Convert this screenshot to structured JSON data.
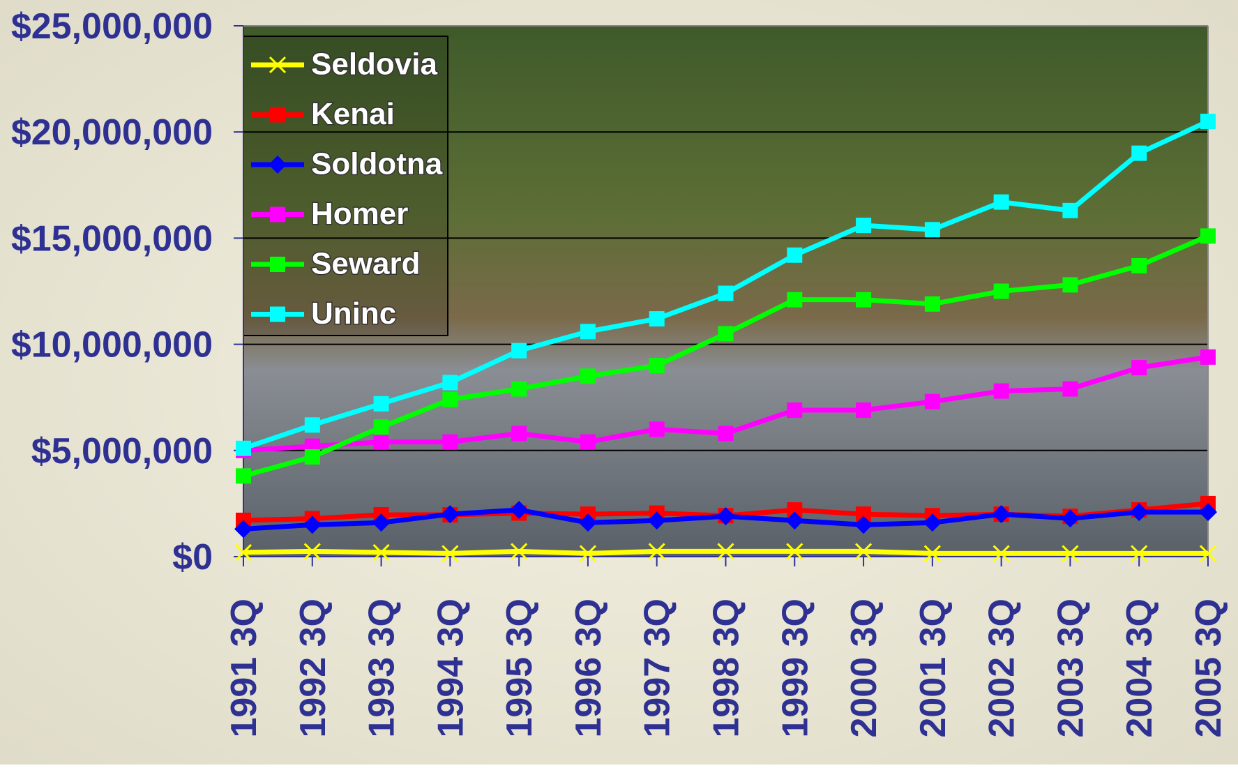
{
  "chart_data": {
    "type": "line",
    "categories": [
      "1991 3Q",
      "1992 3Q",
      "1993 3Q",
      "1994 3Q",
      "1995 3Q",
      "1996 3Q",
      "1997 3Q",
      "1998 3Q",
      "1999 3Q",
      "2000 3Q",
      "2001 3Q",
      "2002 3Q",
      "2003 3Q",
      "2004 3Q",
      "2005 3Q"
    ],
    "series": [
      {
        "name": "Seldovia",
        "color": "#ffff00",
        "marker": "x",
        "values": [
          200000,
          250000,
          200000,
          150000,
          250000,
          150000,
          250000,
          250000,
          250000,
          250000,
          150000,
          150000,
          150000,
          150000,
          150000
        ]
      },
      {
        "name": "Kenai",
        "color": "#ff0000",
        "marker": "square",
        "values": [
          1710000,
          1790000,
          1970000,
          1970000,
          2050000,
          2000000,
          2050000,
          1930000,
          2200000,
          2000000,
          1930000,
          2000000,
          1900000,
          2200000,
          2500000
        ]
      },
      {
        "name": "Soldotna",
        "color": "#0000ff",
        "marker": "diamond",
        "values": [
          1300000,
          1500000,
          1600000,
          2000000,
          2200000,
          1600000,
          1700000,
          1900000,
          1700000,
          1500000,
          1600000,
          2000000,
          1800000,
          2100000,
          2100000
        ]
      },
      {
        "name": "Homer",
        "color": "#ff00ff",
        "marker": "square",
        "values": [
          5000000,
          5200000,
          5400000,
          5400000,
          5800000,
          5400000,
          6000000,
          5800000,
          6900000,
          6900000,
          7300000,
          7800000,
          7900000,
          8900000,
          9400000
        ]
      },
      {
        "name": "Seward",
        "color": "#00ff00",
        "marker": "square",
        "values": [
          3800000,
          4700000,
          6100000,
          7400000,
          7900000,
          8500000,
          9000000,
          10500000,
          12100000,
          12100000,
          11900000,
          12500000,
          12800000,
          13700000,
          15100000
        ]
      },
      {
        "name": "Uninc",
        "color": "#00ffff",
        "marker": "square",
        "values": [
          5100000,
          6200000,
          7200000,
          8200000,
          9700000,
          10600000,
          11200000,
          12400000,
          14200000,
          15600000,
          15400000,
          16700000,
          16300000,
          19000000,
          20500000
        ]
      }
    ],
    "ylim": [
      0,
      25000000
    ],
    "yticks": [
      {
        "value": 0,
        "label": "$0"
      },
      {
        "value": 5000000,
        "label": "$5,000,000"
      },
      {
        "value": 10000000,
        "label": "$10,000,000"
      },
      {
        "value": 15000000,
        "label": "$15,000,000"
      },
      {
        "value": 20000000,
        "label": "$20,000,000"
      },
      {
        "value": 25000000,
        "label": "$25,000,000"
      }
    ],
    "grid": true,
    "legend": "top-left"
  }
}
